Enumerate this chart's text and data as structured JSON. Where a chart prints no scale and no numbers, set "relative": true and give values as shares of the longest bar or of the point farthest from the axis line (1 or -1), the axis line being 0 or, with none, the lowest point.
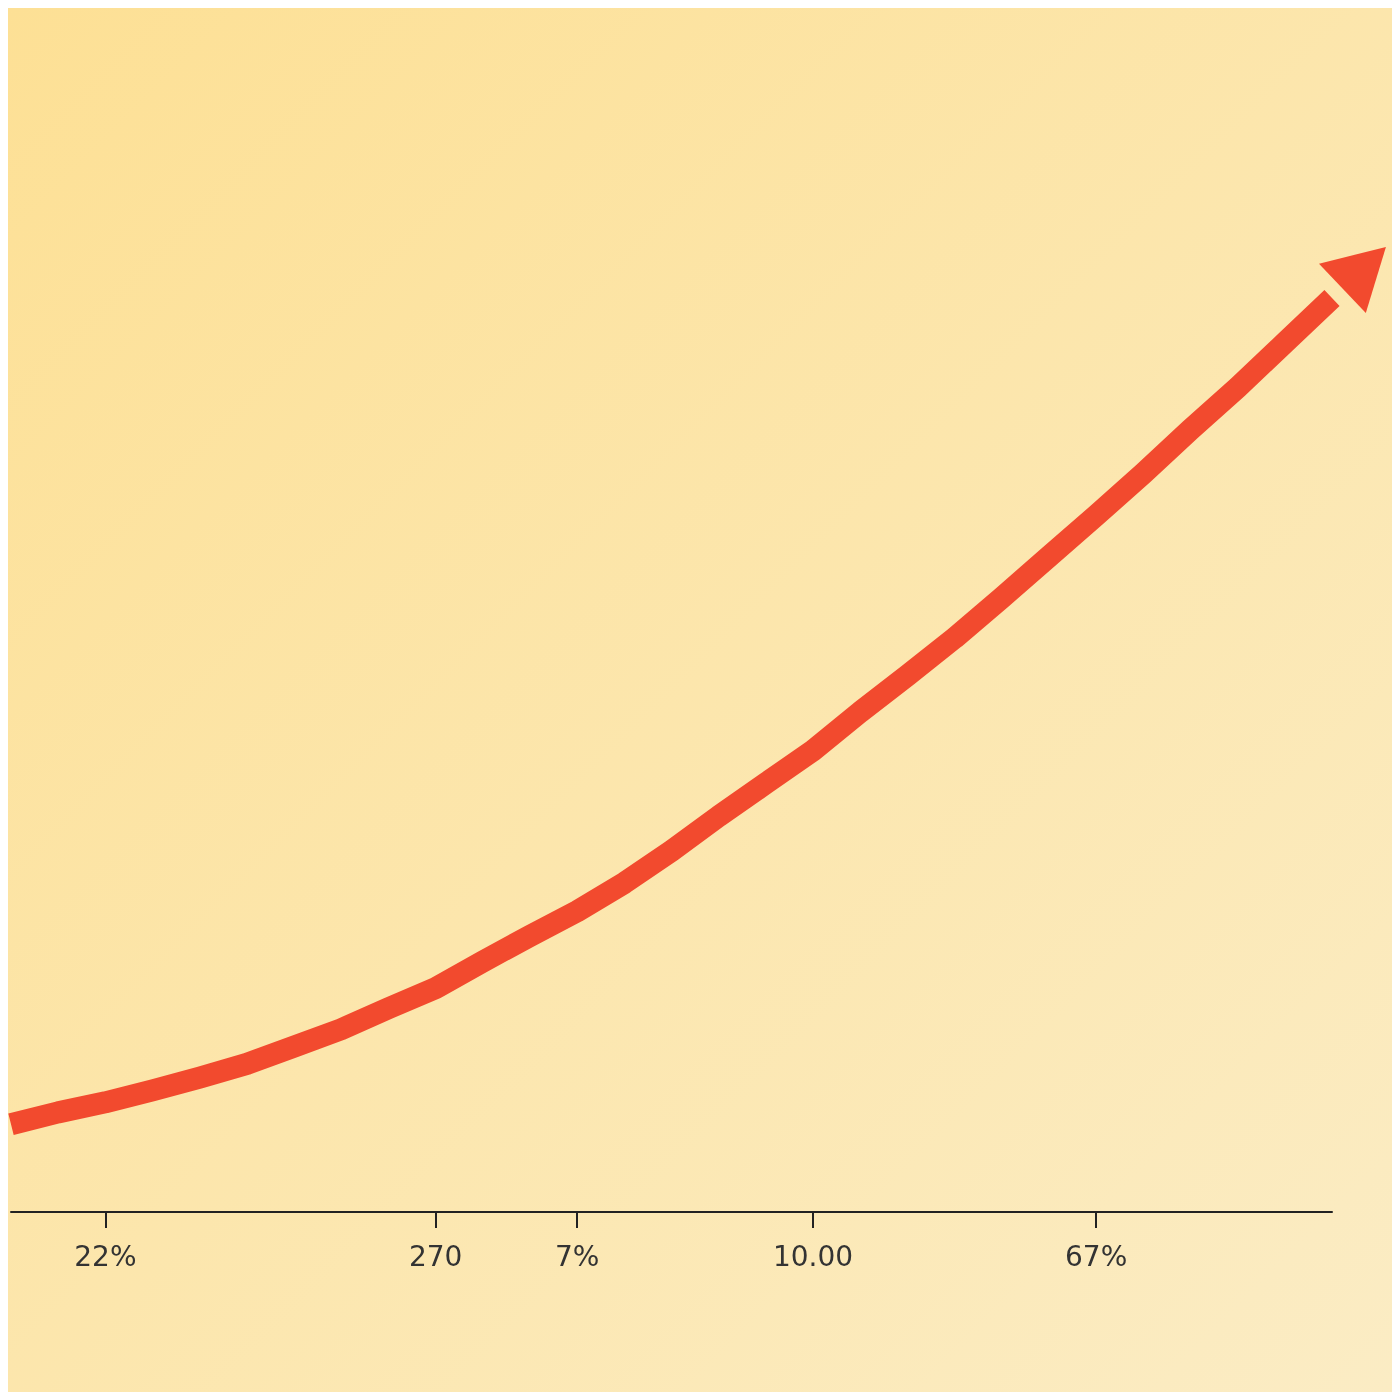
{
  "chart_data": {
    "type": "line",
    "relative": true,
    "tick_labels": "x",
    "line_style": "solid",
    "categories": [
      null,
      null,
      "22%",
      null,
      null,
      null,
      null,
      null,
      null,
      "270",
      null,
      null,
      "7%",
      null,
      null,
      null,
      null,
      "10.00",
      null,
      null,
      null,
      null,
      null,
      "67%",
      null,
      null,
      null,
      null,
      null
    ],
    "series": [
      {
        "color": "#f24a2e",
        "values": [
          0.096,
          0.109,
          0.12,
          0.133,
          0.147,
          0.162,
          0.181,
          0.2,
          0.223,
          0.245,
          0.274,
          0.302,
          0.329,
          0.36,
          0.395,
          0.433,
          0.469,
          0.505,
          0.547,
          0.587,
          0.628,
          0.672,
          0.717,
          0.762,
          0.808,
          0.856,
          0.902,
          0.951,
          1
        ]
      }
    ]
  }
}
